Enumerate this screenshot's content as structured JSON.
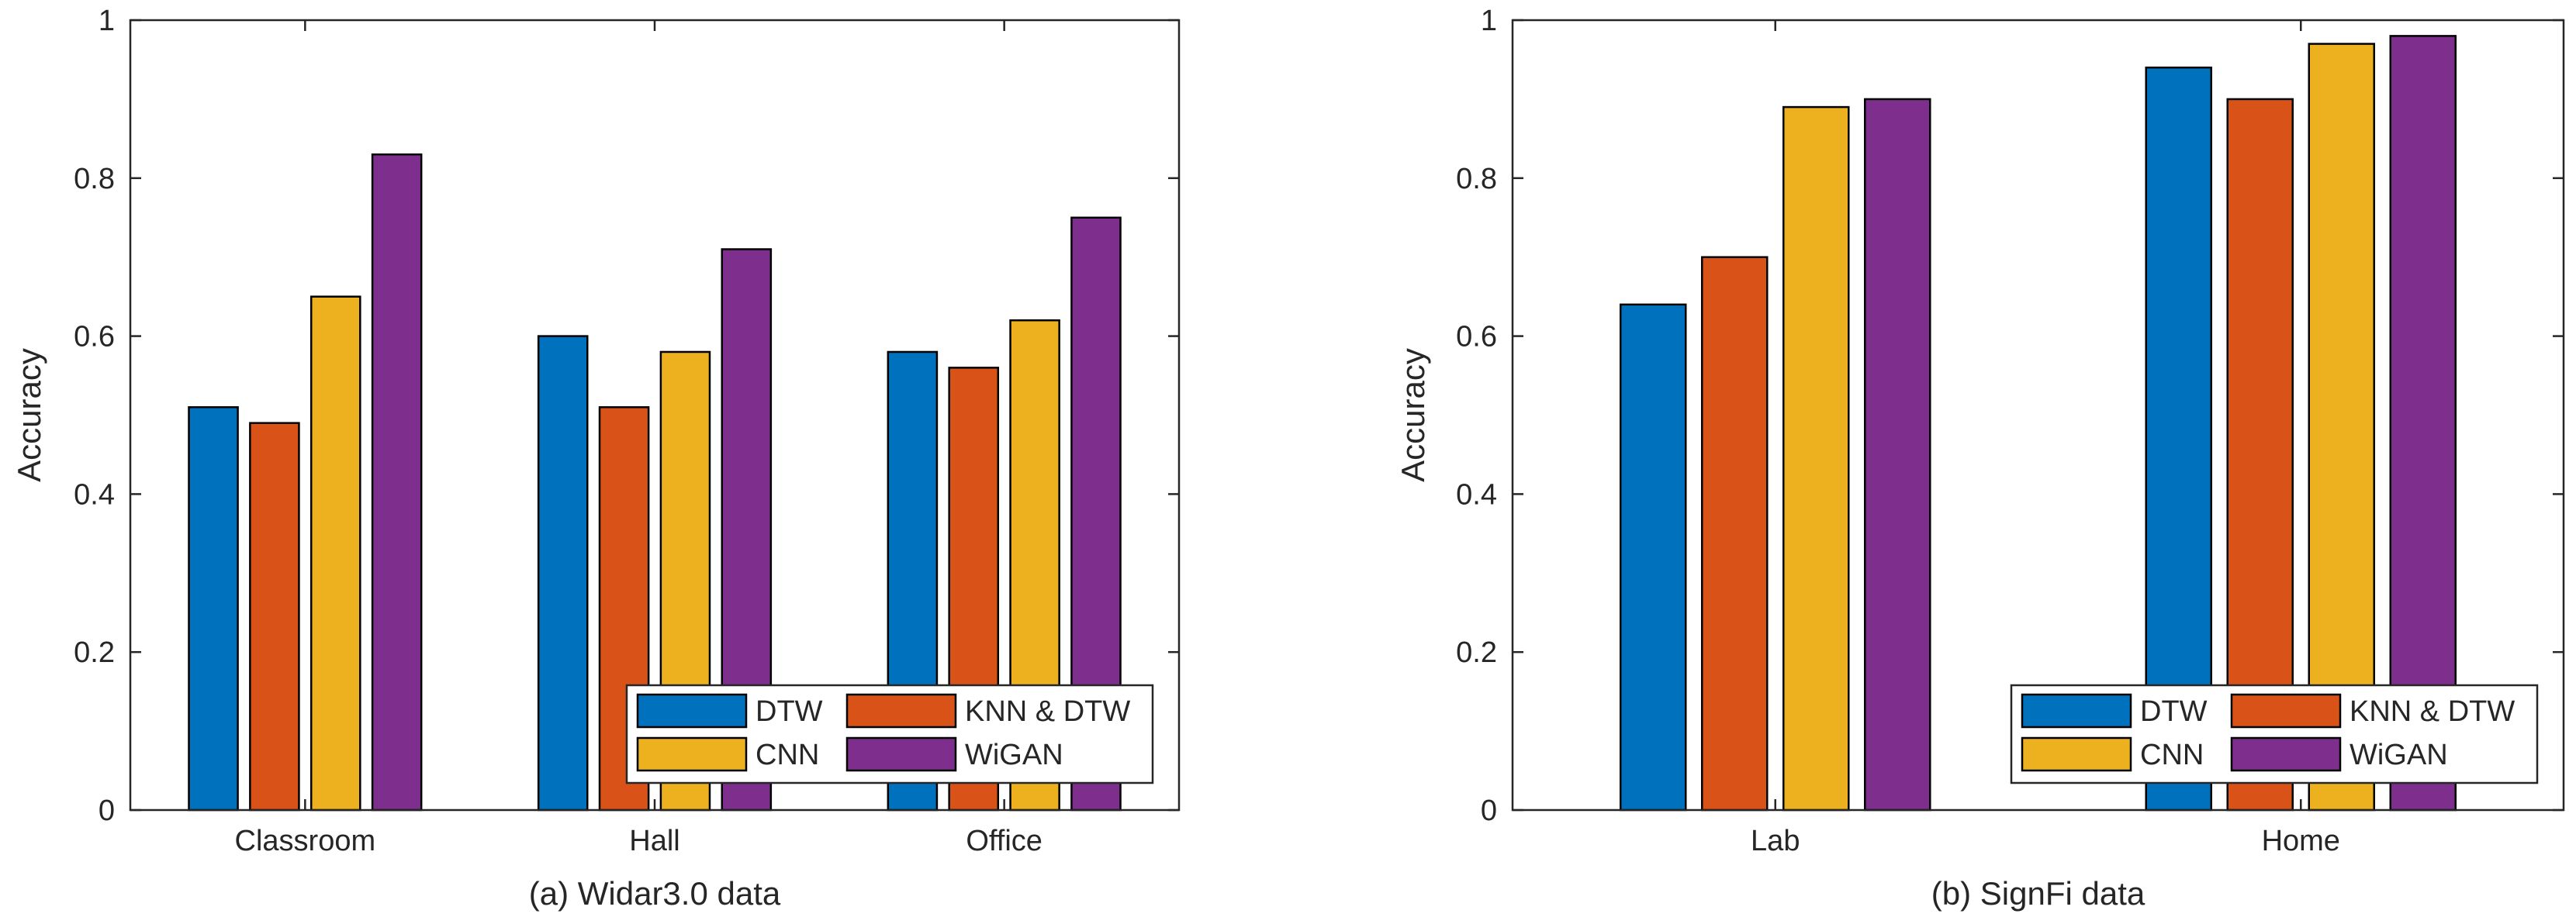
{
  "colors": {
    "DTW": "#0072BD",
    "KNN & DTW": "#D95319",
    "CNN": "#EDB120",
    "WiGAN": "#7E2F8E",
    "axis": "#262626",
    "bar_edge": "#000000"
  },
  "chart_data": [
    {
      "type": "bar",
      "title": "",
      "caption": "(a) Widar3.0 data",
      "xlabel": "",
      "ylabel": "Accuracy",
      "ylim": [
        0,
        1
      ],
      "yticks": [
        0,
        0.2,
        0.4,
        0.6,
        0.8,
        1
      ],
      "ytick_labels": [
        "0",
        "0.2",
        "0.4",
        "0.6",
        "0.8",
        "1"
      ],
      "categories": [
        "Classroom",
        "Hall",
        "Office"
      ],
      "legend": {
        "position": "bottom-right",
        "columns": 2,
        "entries": [
          "DTW",
          "KNN & DTW",
          "CNN",
          "WiGAN"
        ]
      },
      "series": [
        {
          "name": "DTW",
          "values": [
            0.51,
            0.6,
            0.58
          ]
        },
        {
          "name": "KNN & DTW",
          "values": [
            0.49,
            0.51,
            0.56
          ]
        },
        {
          "name": "CNN",
          "values": [
            0.65,
            0.58,
            0.62
          ]
        },
        {
          "name": "WiGAN",
          "values": [
            0.83,
            0.71,
            0.75
          ]
        }
      ]
    },
    {
      "type": "bar",
      "title": "",
      "caption": "(b) SignFi data",
      "xlabel": "",
      "ylabel": "Accuracy",
      "ylim": [
        0,
        1
      ],
      "yticks": [
        0,
        0.2,
        0.4,
        0.6,
        0.8,
        1
      ],
      "ytick_labels": [
        "0",
        "0.2",
        "0.4",
        "0.6",
        "0.8",
        "1"
      ],
      "categories": [
        "Lab",
        "Home"
      ],
      "legend": {
        "position": "bottom-right",
        "columns": 2,
        "entries": [
          "DTW",
          "KNN & DTW",
          "CNN",
          "WiGAN"
        ]
      },
      "series": [
        {
          "name": "DTW",
          "values": [
            0.64,
            0.94
          ]
        },
        {
          "name": "KNN & DTW",
          "values": [
            0.7,
            0.9
          ]
        },
        {
          "name": "CNN",
          "values": [
            0.89,
            0.97
          ]
        },
        {
          "name": "WiGAN",
          "values": [
            0.9,
            0.98
          ]
        }
      ]
    }
  ]
}
